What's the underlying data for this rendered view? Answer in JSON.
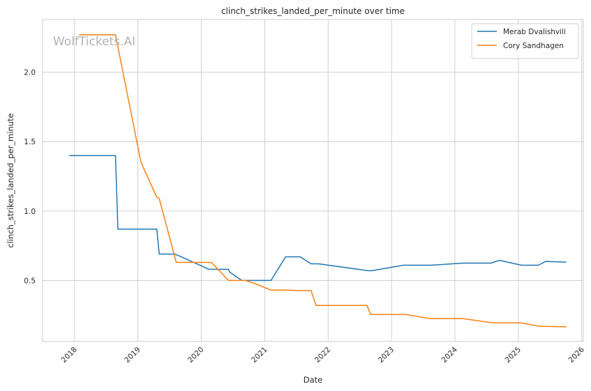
{
  "watermark": "WolfTickets.AI",
  "chart_data": {
    "type": "line",
    "title": "clinch_strikes_landed_per_minute over time",
    "xlabel": "Date",
    "ylabel": "clinch_strikes_landed_per_minute",
    "xlim": [
      "2017-07-01",
      "2026-01-10"
    ],
    "ylim": [
      0.06,
      2.38
    ],
    "x_ticks": [
      "2018",
      "2019",
      "2020",
      "2021",
      "2022",
      "2023",
      "2024",
      "2025",
      "2026"
    ],
    "y_ticks": [
      0.5,
      1.0,
      1.5,
      2.0
    ],
    "y_tick_labels": [
      "0.5",
      "1.0",
      "1.5",
      "2.0"
    ],
    "grid": true,
    "legend_position": "top-right",
    "colors": {
      "Merab Dvalishvili": "#1f77b4",
      "Cory Sandhagen": "#ff7f0e"
    },
    "series": [
      {
        "name": "Merab Dvalishvili",
        "color": "#1f77b4",
        "points": [
          [
            "2017-12-01",
            1.4
          ],
          [
            "2018-08-25",
            1.4
          ],
          [
            "2018-09-08",
            0.87
          ],
          [
            "2019-04-20",
            0.87
          ],
          [
            "2019-05-04",
            0.69
          ],
          [
            "2019-08-03",
            0.69
          ],
          [
            "2020-02-15",
            0.58
          ],
          [
            "2020-06-06",
            0.58
          ],
          [
            "2020-06-13",
            0.56
          ],
          [
            "2020-08-22",
            0.5
          ],
          [
            "2021-02-06",
            0.5
          ],
          [
            "2021-05-01",
            0.67
          ],
          [
            "2021-07-24",
            0.67
          ],
          [
            "2021-09-25",
            0.62
          ],
          [
            "2021-11-06",
            0.62
          ],
          [
            "2022-08-20",
            0.57
          ],
          [
            "2022-09-10",
            0.57
          ],
          [
            "2023-03-11",
            0.61
          ],
          [
            "2023-08-19",
            0.61
          ],
          [
            "2024-02-17",
            0.625
          ],
          [
            "2024-07-27",
            0.625
          ],
          [
            "2024-09-14",
            0.645
          ],
          [
            "2025-01-18",
            0.61
          ],
          [
            "2025-04-26",
            0.61
          ],
          [
            "2025-06-07",
            0.637
          ],
          [
            "2025-10-04",
            0.632
          ]
        ]
      },
      {
        "name": "Cory Sandhagen",
        "color": "#ff7f0e",
        "points": [
          [
            "2018-01-27",
            2.27
          ],
          [
            "2018-08-25",
            2.27
          ],
          [
            "2019-01-19",
            1.35
          ],
          [
            "2019-04-20",
            1.1
          ],
          [
            "2019-05-04",
            1.09
          ],
          [
            "2019-08-10",
            0.63
          ],
          [
            "2020-02-29",
            0.63
          ],
          [
            "2020-06-06",
            0.5
          ],
          [
            "2020-09-12",
            0.5
          ],
          [
            "2020-10-31",
            0.48
          ],
          [
            "2021-02-06",
            0.43
          ],
          [
            "2021-05-15",
            0.43
          ],
          [
            "2021-07-10",
            0.427
          ],
          [
            "2021-09-25",
            0.427
          ],
          [
            "2021-10-23",
            0.32
          ],
          [
            "2022-08-13",
            0.32
          ],
          [
            "2022-09-03",
            0.255
          ],
          [
            "2023-03-25",
            0.255
          ],
          [
            "2023-08-12",
            0.225
          ],
          [
            "2024-02-17",
            0.225
          ],
          [
            "2024-08-03",
            0.195
          ],
          [
            "2025-01-11",
            0.195
          ],
          [
            "2025-05-03",
            0.17
          ],
          [
            "2025-10-04",
            0.166
          ]
        ]
      }
    ]
  }
}
